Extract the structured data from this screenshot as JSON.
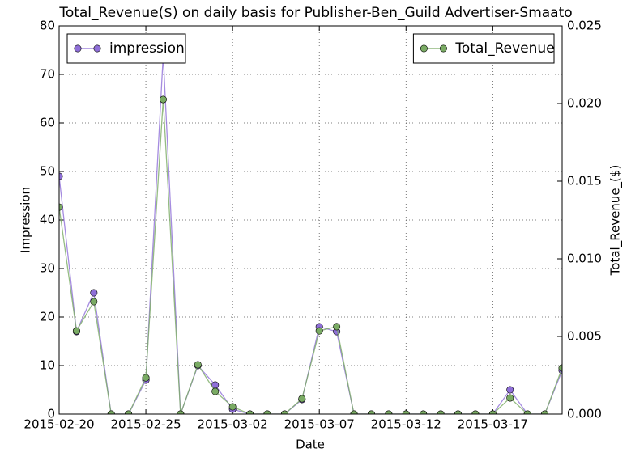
{
  "chart_data": {
    "type": "line",
    "title": "Total_Revenue($) on daily basis for Publisher-Ben_Guild Advertiser-Smaato",
    "x_label": "Date",
    "y_label": "Impression",
    "y2_label": "Total_Revenue_($)",
    "x": [
      "2015-02-20",
      "2015-02-21",
      "2015-02-22",
      "2015-02-23",
      "2015-02-24",
      "2015-02-25",
      "2015-02-26",
      "2015-02-27",
      "2015-02-28",
      "2015-03-01",
      "2015-03-02",
      "2015-03-03",
      "2015-03-04",
      "2015-03-05",
      "2015-03-06",
      "2015-03-07",
      "2015-03-08",
      "2015-03-09",
      "2015-03-10",
      "2015-03-11",
      "2015-03-12",
      "2015-03-13",
      "2015-03-14",
      "2015-03-15",
      "2015-03-16",
      "2015-03-17",
      "2015-03-18",
      "2015-03-19",
      "2015-03-20",
      "2015-03-21"
    ],
    "xlim": [
      "2015-02-20",
      "2015-03-21"
    ],
    "xticks": [
      "2015-02-20",
      "2015-02-25",
      "2015-03-02",
      "2015-03-07",
      "2015-03-12",
      "2015-03-17"
    ],
    "ylim": [
      0,
      80
    ],
    "yticks": [
      0,
      10,
      20,
      30,
      40,
      50,
      60,
      70,
      80
    ],
    "y2lim": [
      0,
      0.025
    ],
    "y2ticks": [
      {
        "value": 0,
        "label": "0.000"
      },
      {
        "value": 0.005,
        "label": "0.005"
      },
      {
        "value": 0.01,
        "label": "0.010"
      },
      {
        "value": 0.015,
        "label": "0.015"
      },
      {
        "value": 0.02,
        "label": "0.020"
      },
      {
        "value": 0.025,
        "label": "0.025"
      }
    ],
    "grid": true,
    "series": [
      {
        "name": "impression",
        "color": "#8f6fd8",
        "legend": "upper left",
        "values": [
          49,
          17,
          25,
          0,
          0,
          7,
          74,
          0,
          10,
          6,
          1,
          0,
          0,
          0,
          3,
          18,
          17,
          0,
          0,
          0,
          0,
          0,
          0,
          0,
          0,
          0,
          5,
          0,
          0,
          9
        ]
      },
      {
        "name": "Total_Revenue",
        "color": "#7aab64",
        "axis": "y2",
        "legend": "upper right",
        "values": [
          0.01333,
          0.00536,
          0.00724,
          0,
          0,
          0.00234,
          0.02026,
          0,
          0.00318,
          0.00146,
          0.00047,
          0,
          0,
          0,
          0.00099,
          0.00536,
          0.00563,
          0,
          0,
          0,
          0,
          0,
          0,
          0,
          0,
          0,
          0.00104,
          0,
          0,
          0.00297
        ]
      }
    ]
  }
}
